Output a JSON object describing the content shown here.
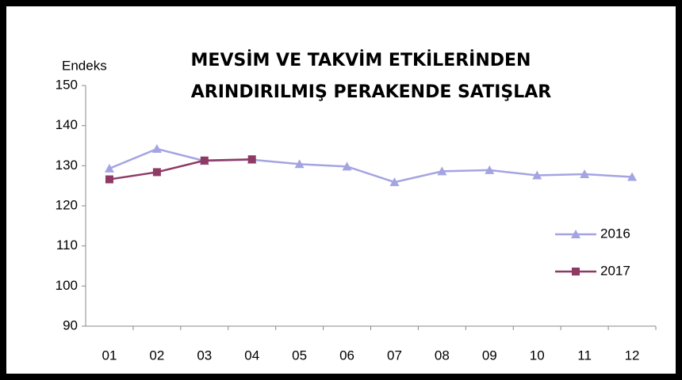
{
  "chart_data": {
    "type": "line",
    "title": [
      "MEVSİM VE TAKVİM ETKİLERİNDEN",
      "ARINDIRILMIŞ PERAKENDE SATIŞLAR"
    ],
    "y_label": "Endeks",
    "categories": [
      "01",
      "02",
      "03",
      "04",
      "05",
      "06",
      "07",
      "08",
      "09",
      "10",
      "11",
      "12"
    ],
    "series": [
      {
        "name": "2016",
        "color": "#a4a4e2",
        "marker": "triangle",
        "values": [
          129.3,
          134.2,
          131.2,
          131.5,
          130.4,
          129.8,
          125.9,
          128.6,
          128.9,
          127.6,
          127.9,
          127.2
        ]
      },
      {
        "name": "2017",
        "color": "#8e3a64",
        "marker": "square",
        "values": [
          126.6,
          128.4,
          131.3,
          131.6,
          null,
          null,
          null,
          null,
          null,
          null,
          null,
          null
        ]
      }
    ],
    "ylim": [
      90,
      150
    ],
    "yticks": [
      90,
      100,
      110,
      120,
      130,
      140,
      150
    ],
    "grid": false,
    "legend": "right"
  }
}
